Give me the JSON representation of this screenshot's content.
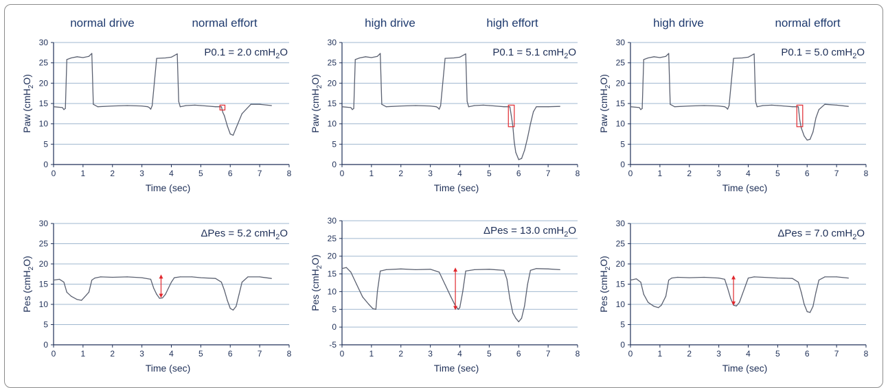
{
  "columns": [
    {
      "drive": "normal drive",
      "effort": "normal effort"
    },
    {
      "drive": "high drive",
      "effort": "high effort"
    },
    {
      "drive": "high drive",
      "effort": "normal effort"
    }
  ],
  "colors": {
    "line": "#5a6070",
    "grid": "#9fb7cf",
    "text": "#1e2f57",
    "highlight": "#e0282e"
  },
  "chart_data": [
    {
      "type": "line",
      "xlabel": "Time (sec)",
      "ylabel_main": "Paw (cmH",
      "ylabel_sub": "2",
      "ylabel_end": "O)",
      "annotation": {
        "main": "P0.1 = 2.0 cmH",
        "sub": "2",
        "end": "O"
      },
      "xlim": [
        0,
        8
      ],
      "ylim": [
        0,
        30
      ],
      "xticks": [
        0,
        1,
        2,
        3,
        4,
        5,
        6,
        7,
        8
      ],
      "yticks": [
        0,
        5,
        10,
        15,
        20,
        25,
        30
      ],
      "grid": true,
      "series": [
        {
          "x": [
            0,
            0.3,
            0.35,
            0.4,
            0.45,
            0.6,
            0.8,
            1.0,
            1.2,
            1.3,
            1.35,
            1.5,
            2.0,
            2.5,
            3.0,
            3.2,
            3.25,
            3.3,
            3.35,
            3.5,
            3.8,
            4.0,
            4.2,
            4.25,
            4.3,
            4.5,
            4.8,
            5.0,
            5.2,
            5.5,
            5.7,
            5.75,
            5.8,
            5.9,
            6.0,
            6.1,
            6.2,
            6.4,
            6.7,
            7.0,
            7.4
          ],
          "y": [
            14.2,
            14.0,
            13.5,
            13.8,
            25.8,
            26.2,
            26.5,
            26.3,
            26.6,
            27.3,
            14.8,
            14.2,
            14.4,
            14.5,
            14.4,
            14.2,
            14.0,
            13.6,
            14.5,
            26.1,
            26.2,
            26.4,
            27.2,
            15.5,
            14.2,
            14.5,
            14.6,
            14.5,
            14.4,
            14.2,
            14.2,
            12.8,
            12.0,
            9.5,
            7.5,
            7.2,
            9.0,
            12.5,
            14.8,
            14.8,
            14.5
          ]
        }
      ],
      "highlight": {
        "x0": 5.65,
        "x1": 5.82,
        "y0": 13.4,
        "y1": 14.6
      }
    },
    {
      "type": "line",
      "xlabel": "Time (sec)",
      "ylabel_main": "Paw (cmH",
      "ylabel_sub": "2",
      "ylabel_end": "O)",
      "annotation": {
        "main": "P0.1 = 5.1 cmH",
        "sub": "2",
        "end": "O"
      },
      "xlim": [
        0,
        8
      ],
      "ylim": [
        0,
        30
      ],
      "xticks": [
        0,
        1,
        2,
        3,
        4,
        5,
        6,
        7,
        8
      ],
      "yticks": [
        0,
        5,
        10,
        15,
        20,
        25,
        30
      ],
      "grid": true,
      "series": [
        {
          "x": [
            0,
            0.3,
            0.35,
            0.4,
            0.45,
            0.6,
            0.8,
            1.0,
            1.2,
            1.3,
            1.35,
            1.5,
            2.0,
            2.5,
            3.0,
            3.2,
            3.25,
            3.3,
            3.35,
            3.5,
            3.8,
            4.0,
            4.2,
            4.25,
            4.3,
            4.5,
            4.8,
            5.0,
            5.2,
            5.5,
            5.7,
            5.75,
            5.8,
            5.85,
            5.9,
            6.0,
            6.1,
            6.2,
            6.3,
            6.4,
            6.5,
            6.6,
            7.0,
            7.4
          ],
          "y": [
            14.2,
            14.0,
            13.5,
            13.8,
            25.8,
            26.2,
            26.5,
            26.3,
            26.6,
            27.3,
            14.8,
            14.2,
            14.4,
            14.5,
            14.4,
            14.2,
            14.0,
            13.6,
            14.5,
            26.1,
            26.2,
            26.4,
            27.2,
            15.5,
            14.2,
            14.5,
            14.6,
            14.5,
            14.4,
            14.2,
            14.2,
            12.0,
            9.5,
            5.5,
            3.0,
            1.2,
            1.5,
            3.5,
            6.5,
            10.0,
            13.0,
            14.2,
            14.2,
            14.3
          ]
        }
      ],
      "highlight": {
        "x0": 5.65,
        "x1": 5.85,
        "y0": 9.3,
        "y1": 14.6
      }
    },
    {
      "type": "line",
      "xlabel": "Time (sec)",
      "ylabel_main": "Paw (cmH",
      "ylabel_sub": "2",
      "ylabel_end": "O)",
      "annotation": {
        "main": "P0.1 = 5.0 cmH",
        "sub": "2",
        "end": "O"
      },
      "xlim": [
        0,
        8
      ],
      "ylim": [
        0,
        30
      ],
      "xticks": [
        0,
        1,
        2,
        3,
        4,
        5,
        6,
        7,
        8
      ],
      "yticks": [
        0,
        5,
        10,
        15,
        20,
        25,
        30
      ],
      "grid": true,
      "series": [
        {
          "x": [
            0,
            0.3,
            0.35,
            0.4,
            0.45,
            0.6,
            0.8,
            1.0,
            1.2,
            1.3,
            1.35,
            1.5,
            2.0,
            2.5,
            3.0,
            3.2,
            3.25,
            3.3,
            3.35,
            3.5,
            3.8,
            4.0,
            4.2,
            4.25,
            4.3,
            4.5,
            4.8,
            5.0,
            5.2,
            5.5,
            5.7,
            5.75,
            5.8,
            5.9,
            6.0,
            6.1,
            6.2,
            6.3,
            6.4,
            6.6,
            7.0,
            7.4
          ],
          "y": [
            14.2,
            14.0,
            13.5,
            13.8,
            25.8,
            26.2,
            26.5,
            26.3,
            26.6,
            27.3,
            14.8,
            14.2,
            14.4,
            14.5,
            14.4,
            14.2,
            14.0,
            13.6,
            14.5,
            26.1,
            26.2,
            26.4,
            27.2,
            15.5,
            14.2,
            14.5,
            14.6,
            14.5,
            14.4,
            14.2,
            14.2,
            11.0,
            9.0,
            7.0,
            6.0,
            6.2,
            8.0,
            11.5,
            13.5,
            14.8,
            14.6,
            14.3
          ]
        }
      ],
      "highlight": {
        "x0": 5.65,
        "x1": 5.85,
        "y0": 9.3,
        "y1": 14.6
      }
    },
    {
      "type": "line",
      "xlabel": "Time (sec)",
      "ylabel_main": "Pes (cmH",
      "ylabel_sub": "2",
      "ylabel_end": "O)",
      "annotation": {
        "main": "ΔPes = 5.2 cmH",
        "sub": "2",
        "end": "O"
      },
      "xlim": [
        0,
        8
      ],
      "ylim": [
        0,
        30
      ],
      "xticks": [
        0,
        1,
        2,
        3,
        4,
        5,
        6,
        7,
        8
      ],
      "yticks": [
        0,
        5,
        10,
        15,
        20,
        25,
        30
      ],
      "grid": true,
      "series": [
        {
          "x": [
            0,
            0.2,
            0.35,
            0.45,
            0.6,
            0.8,
            0.95,
            1.05,
            1.2,
            1.3,
            1.4,
            1.6,
            2.0,
            2.5,
            3.0,
            3.3,
            3.4,
            3.5,
            3.6,
            3.7,
            3.8,
            3.9,
            4.0,
            4.1,
            4.3,
            4.7,
            5.0,
            5.5,
            5.7,
            5.8,
            5.9,
            6.0,
            6.1,
            6.2,
            6.3,
            6.4,
            6.6,
            7.0,
            7.4
          ],
          "y": [
            16.0,
            16.2,
            15.5,
            13.0,
            12.0,
            11.2,
            11.0,
            11.8,
            13.0,
            16.0,
            16.5,
            16.8,
            16.7,
            16.8,
            16.6,
            16.2,
            14.0,
            12.5,
            11.5,
            11.6,
            12.5,
            14.0,
            15.5,
            16.6,
            16.8,
            16.8,
            16.6,
            16.4,
            15.5,
            13.5,
            11.0,
            9.0,
            8.6,
            9.5,
            12.5,
            15.5,
            16.8,
            16.8,
            16.4
          ]
        }
      ],
      "arrow": {
        "x": 3.65,
        "y0": 11.6,
        "y1": 17.4
      }
    },
    {
      "type": "line",
      "xlabel": "Time (sec)",
      "ylabel_main": "Pes (cmH",
      "ylabel_sub": "2",
      "ylabel_end": "O)",
      "annotation": {
        "main": "ΔPes = 13.0 cmH",
        "sub": "2",
        "end": "O"
      },
      "xlim": [
        0,
        8
      ],
      "ylim": [
        -5,
        30
      ],
      "xticks": [
        0,
        1,
        2,
        3,
        4,
        5,
        6,
        7,
        8
      ],
      "yticks": [
        -5,
        0,
        5,
        10,
        15,
        20,
        25,
        30
      ],
      "grid": true,
      "series": [
        {
          "x": [
            0,
            0.15,
            0.3,
            0.5,
            0.7,
            0.9,
            1.05,
            1.15,
            1.2,
            1.3,
            1.5,
            2.0,
            2.5,
            3.0,
            3.3,
            3.5,
            3.7,
            3.85,
            3.95,
            4.0,
            4.1,
            4.2,
            4.5,
            5.0,
            5.5,
            5.6,
            5.7,
            5.8,
            5.9,
            6.0,
            6.1,
            6.2,
            6.3,
            6.4,
            6.6,
            7.0,
            7.4
          ],
          "y": [
            16.5,
            16.8,
            15.5,
            12.0,
            8.5,
            6.5,
            5.2,
            5.0,
            10.0,
            15.8,
            16.2,
            16.4,
            16.2,
            16.3,
            15.5,
            12.0,
            8.5,
            6.0,
            5.0,
            5.5,
            10.0,
            15.8,
            16.2,
            16.3,
            16.0,
            13.5,
            8.0,
            4.0,
            2.5,
            1.5,
            2.5,
            6.0,
            12.0,
            16.0,
            16.5,
            16.4,
            16.2
          ]
        }
      ],
      "arrow": {
        "x": 3.85,
        "y0": 4.8,
        "y1": 16.8
      }
    },
    {
      "type": "line",
      "xlabel": "Time (sec)",
      "ylabel_main": "Pes (cmH",
      "ylabel_sub": "2",
      "ylabel_end": "O)",
      "annotation": {
        "main": "ΔPes = 7.0 cmH",
        "sub": "2",
        "end": "O"
      },
      "xlim": [
        0,
        8
      ],
      "ylim": [
        0,
        30
      ],
      "xticks": [
        0,
        1,
        2,
        3,
        4,
        5,
        6,
        7,
        8
      ],
      "yticks": [
        0,
        5,
        10,
        15,
        20,
        25,
        30
      ],
      "grid": true,
      "series": [
        {
          "x": [
            0,
            0.2,
            0.35,
            0.45,
            0.6,
            0.8,
            0.95,
            1.05,
            1.2,
            1.3,
            1.4,
            1.6,
            2.0,
            2.5,
            3.0,
            3.2,
            3.3,
            3.4,
            3.5,
            3.6,
            3.7,
            3.8,
            4.0,
            4.2,
            4.5,
            5.0,
            5.5,
            5.7,
            5.8,
            5.9,
            6.0,
            6.1,
            6.2,
            6.3,
            6.4,
            6.6,
            7.0,
            7.4
          ],
          "y": [
            16.0,
            16.3,
            15.5,
            12.5,
            10.5,
            9.5,
            9.2,
            9.8,
            12.0,
            16.0,
            16.5,
            16.7,
            16.6,
            16.7,
            16.5,
            16.2,
            14.0,
            11.5,
            9.8,
            9.6,
            10.5,
            12.5,
            16.5,
            16.8,
            16.7,
            16.5,
            16.4,
            15.5,
            13.0,
            10.0,
            8.2,
            8.0,
            9.5,
            13.0,
            16.0,
            16.8,
            16.8,
            16.5
          ]
        }
      ],
      "arrow": {
        "x": 3.5,
        "y0": 9.7,
        "y1": 17.2
      }
    }
  ]
}
